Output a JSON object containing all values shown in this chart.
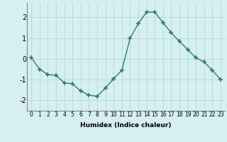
{
  "x": [
    0,
    1,
    2,
    3,
    4,
    5,
    6,
    7,
    8,
    9,
    10,
    11,
    12,
    13,
    14,
    15,
    16,
    17,
    18,
    19,
    20,
    21,
    22,
    23
  ],
  "y": [
    0.05,
    -0.5,
    -0.75,
    -0.8,
    -1.15,
    -1.2,
    -1.55,
    -1.75,
    -1.8,
    -1.4,
    -0.95,
    -0.55,
    1.0,
    1.7,
    2.25,
    2.25,
    1.75,
    1.25,
    0.85,
    0.45,
    0.05,
    -0.15,
    -0.55,
    -1.0
  ],
  "line_color": "#2e7d6e",
  "marker": "+",
  "markersize": 4,
  "markeredgewidth": 1.2,
  "linewidth": 1.0,
  "linestyle": "-",
  "xlabel": "Humidex (Indice chaleur)",
  "xlim": [
    -0.5,
    23.5
  ],
  "ylim": [
    -2.5,
    2.7
  ],
  "yticks": [
    -2,
    -1,
    0,
    1,
    2
  ],
  "xticks": [
    0,
    1,
    2,
    3,
    4,
    5,
    6,
    7,
    8,
    9,
    10,
    11,
    12,
    13,
    14,
    15,
    16,
    17,
    18,
    19,
    20,
    21,
    22,
    23
  ],
  "xtick_labels": [
    "0",
    "1",
    "2",
    "3",
    "4",
    "5",
    "6",
    "7",
    "8",
    "9",
    "10",
    "11",
    "12",
    "13",
    "14",
    "15",
    "16",
    "17",
    "18",
    "19",
    "20",
    "21",
    "22",
    "23"
  ],
  "background_color": "#d6efef",
  "grid_color": "#b8d8d8",
  "xlabel_fontsize": 6.5,
  "tick_fontsize": 5.5,
  "ytick_fontsize": 7
}
